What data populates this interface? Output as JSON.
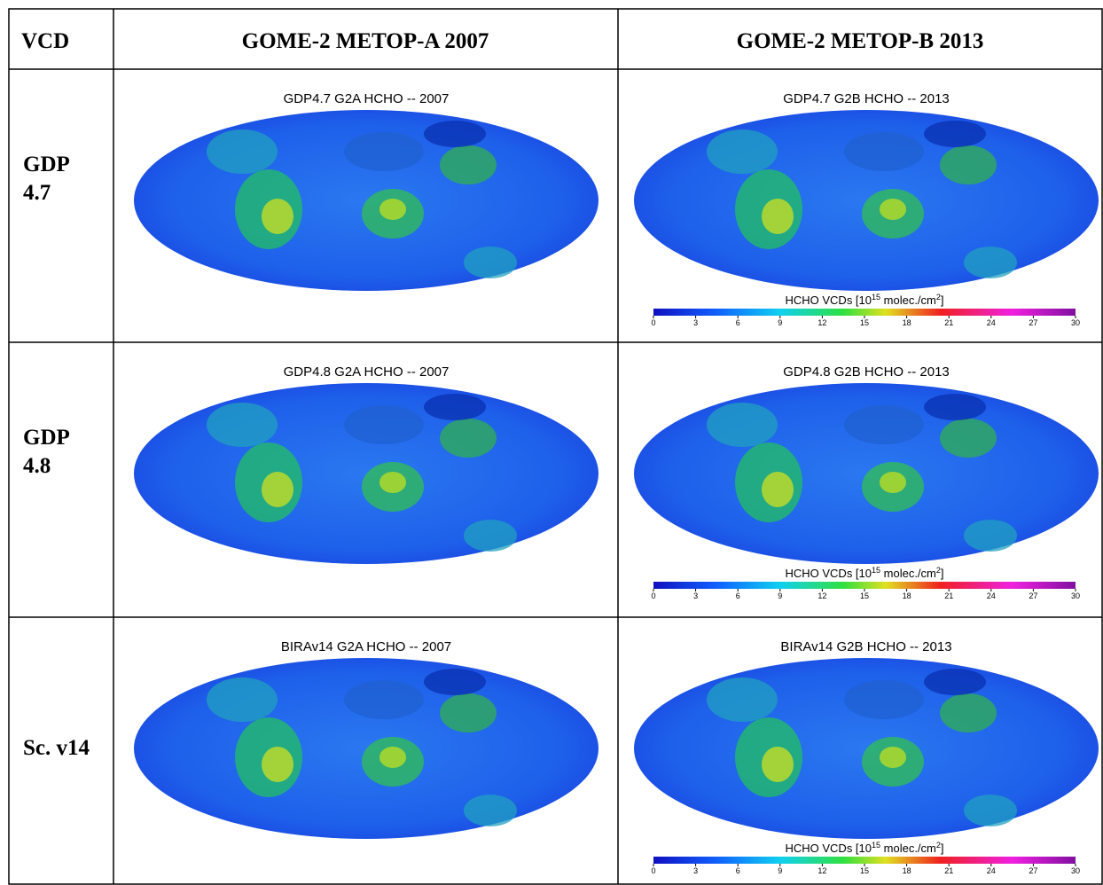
{
  "table": {
    "header": [
      "VCD",
      "GOME-2 METOP-A 2007",
      "GOME-2 METOP-B 2013"
    ],
    "rows": [
      {
        "label": [
          "GDP",
          "4.7"
        ],
        "maps": [
          "GDP4.7 G2A HCHO -- 2007",
          "GDP4.7 G2B HCHO -- 2013"
        ]
      },
      {
        "label": [
          "GDP",
          "4.8"
        ],
        "maps": [
          "GDP4.8 G2A HCHO -- 2007",
          "GDP4.8 G2B HCHO -- 2013"
        ]
      },
      {
        "label": [
          "Sc. v14"
        ],
        "maps": [
          "BIRAv14 G2A HCHO -- 2007",
          "BIRAv14 G2B HCHO -- 2013"
        ]
      }
    ]
  },
  "colorbar": {
    "label": [
      "HCHO VCDs [10",
      "15",
      " molec./cm",
      "2",
      "]"
    ],
    "ticks": [
      0,
      3,
      6,
      9,
      12,
      15,
      18,
      21,
      24,
      27,
      30
    ]
  }
}
